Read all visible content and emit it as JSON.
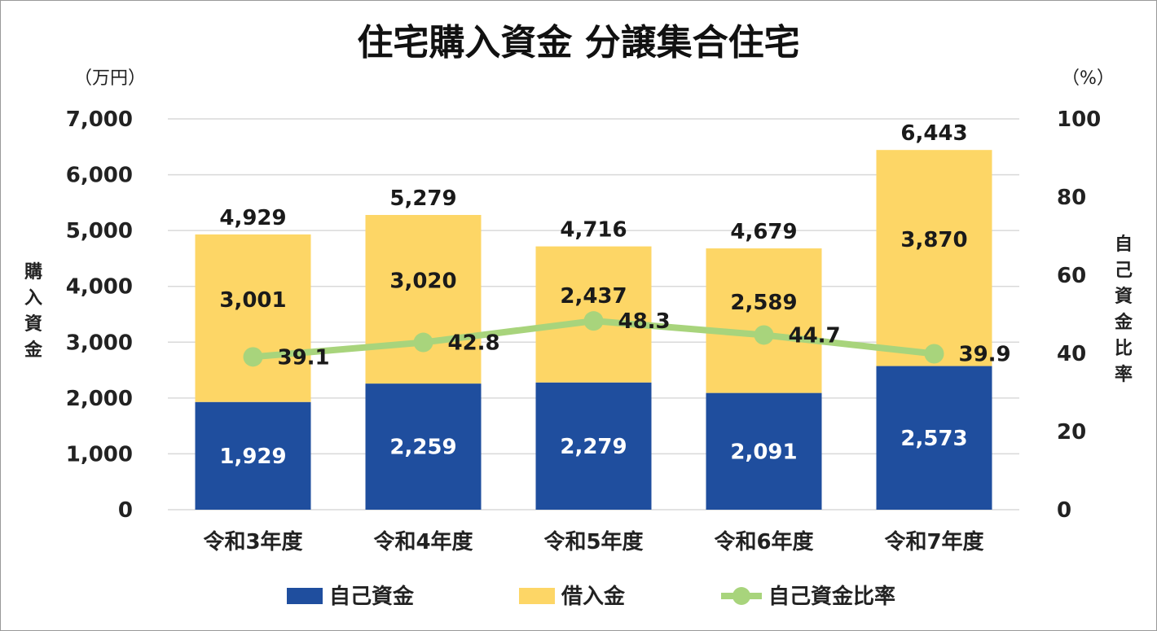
{
  "chart_data": {
    "type": "bar",
    "stacked": true,
    "title": "住宅購入資金 分譲集合住宅",
    "categories": [
      "令和3年度",
      "令和4年度",
      "令和5年度",
      "令和6年度",
      "令和7年度"
    ],
    "series": [
      {
        "name": "自己資金",
        "axis": "left",
        "color": "#1f4e9e",
        "values": [
          1929,
          2259,
          2279,
          2091,
          2573
        ],
        "labels": [
          "1,929",
          "2,259",
          "2,279",
          "2,091",
          "2,573"
        ]
      },
      {
        "name": "借入金",
        "axis": "left",
        "color": "#fdd666",
        "values": [
          3001,
          3020,
          2437,
          2589,
          3870
        ],
        "labels": [
          "3,001",
          "3,020",
          "2,437",
          "2,589",
          "3,870"
        ]
      },
      {
        "name": "自己資金比率",
        "axis": "right",
        "type": "line",
        "color": "#a8d47c",
        "values": [
          39.1,
          42.8,
          48.3,
          44.7,
          39.9
        ],
        "labels": [
          "39.1",
          "42.8",
          "48.3",
          "44.7",
          "39.9"
        ]
      }
    ],
    "totals": [
      4929,
      5279,
      4716,
      4679,
      6443
    ],
    "total_labels": [
      "4,929",
      "5,279",
      "4,716",
      "4,679",
      "6,443"
    ],
    "left_axis": {
      "label": "購入資金",
      "unit": "（万円）",
      "ylim": [
        0,
        7000
      ],
      "ticks": [
        "0",
        "1,000",
        "2,000",
        "3,000",
        "4,000",
        "5,000",
        "6,000",
        "7,000"
      ]
    },
    "right_axis": {
      "label": "自己資金比率",
      "unit": "（%）",
      "ylim": [
        0,
        100
      ],
      "ticks": [
        "0",
        "20",
        "40",
        "60",
        "80",
        "100"
      ]
    },
    "grid": true,
    "legend_position": "bottom"
  }
}
